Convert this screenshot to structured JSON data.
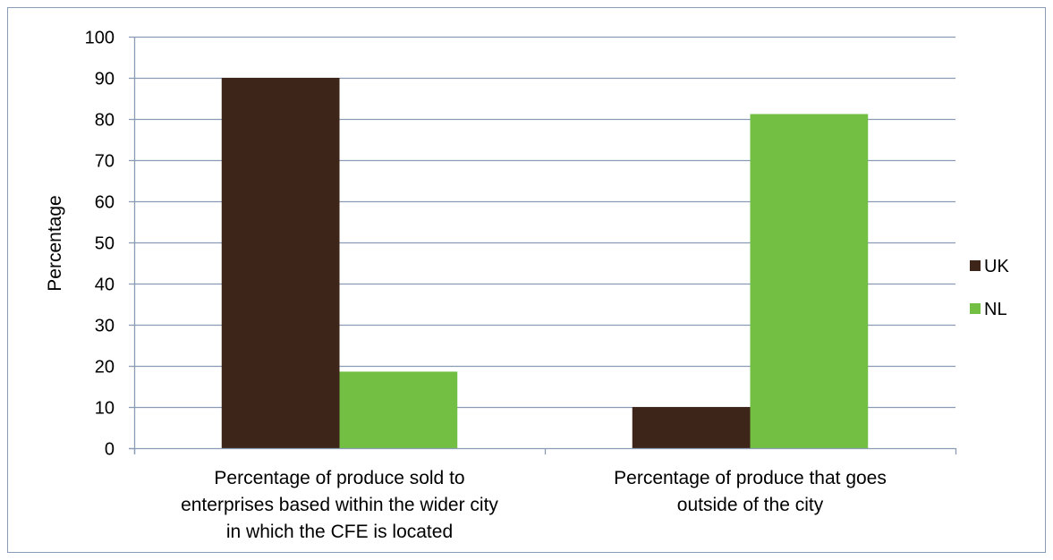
{
  "chart_data": {
    "type": "bar",
    "categories": [
      [
        "Percentage of produce sold to",
        "enterprises based within the wider city",
        "in which the CFE is located"
      ],
      [
        "Percentage of produce that goes",
        "outside of the city"
      ]
    ],
    "series": [
      {
        "name": "UK",
        "color": "#3e2519",
        "values": [
          90,
          10
        ]
      },
      {
        "name": "NL",
        "color": "#72bf44",
        "values": [
          18.6,
          81.2
        ]
      }
    ],
    "title": "",
    "xlabel": "",
    "ylabel": "Percentage",
    "ylim": [
      0,
      100
    ],
    "yticks": [
      0,
      10,
      20,
      30,
      40,
      50,
      60,
      70,
      80,
      90,
      100
    ],
    "grid": true,
    "legend": "right",
    "colors": {
      "grid": "#8a9bb5",
      "axis": "#8a9bb5",
      "frame": "#8a9bb5"
    }
  }
}
